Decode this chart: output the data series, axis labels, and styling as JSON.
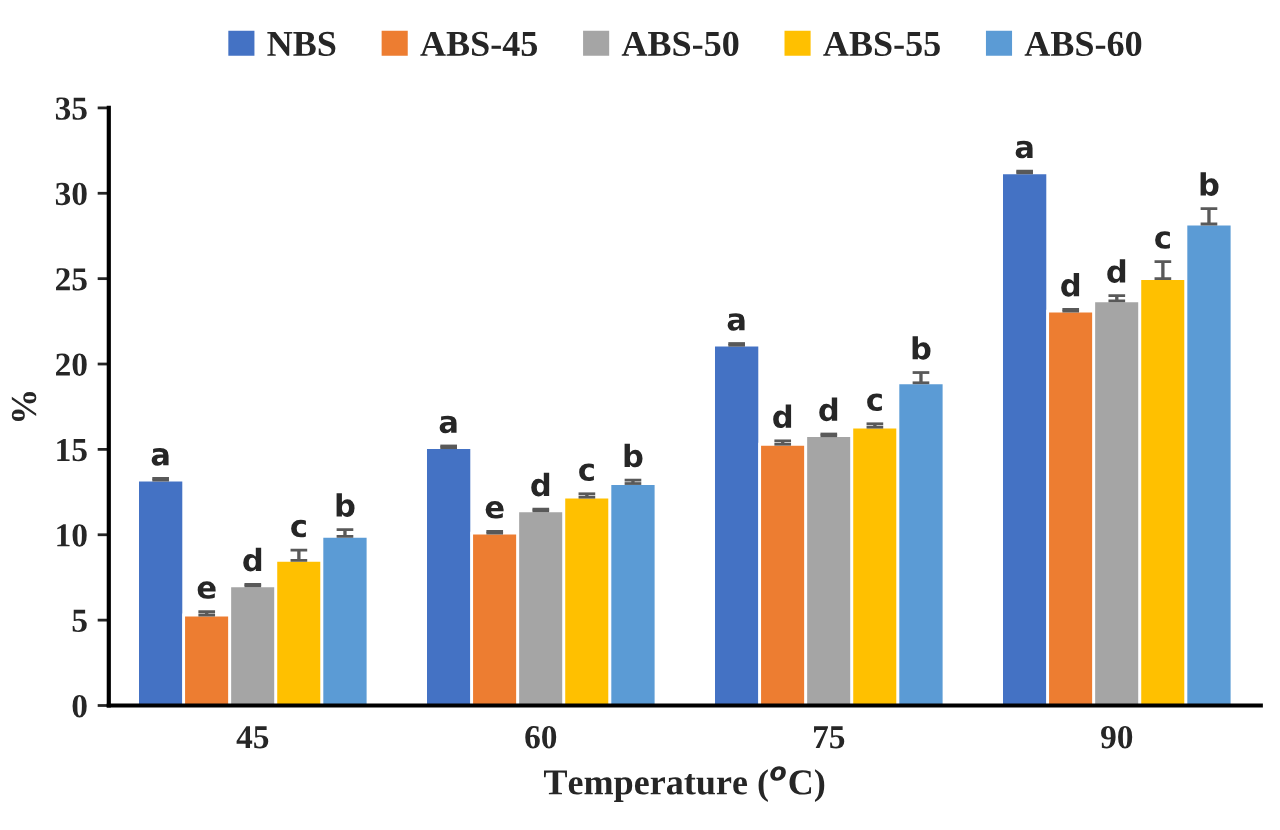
{
  "chart_data": {
    "type": "bar",
    "xlabel": "Temperature ($^{o}$C)",
    "ylabel": "%",
    "categories": [
      "45",
      "60",
      "75",
      "90"
    ],
    "series": [
      {
        "name": "NBS",
        "color": "#4472c4",
        "values": [
          13.2,
          15.1,
          21.1,
          31.2
        ],
        "errors": [
          [
            13.2,
            13.3
          ],
          [
            15.1,
            15.2
          ],
          [
            21.1,
            21.2
          ],
          [
            31.2,
            31.3
          ]
        ],
        "value_labels": [
          "a",
          "a",
          "a",
          "a"
        ]
      },
      {
        "name": "ABS-45",
        "color": "#ed7d31",
        "values": [
          5.3,
          10.1,
          15.3,
          23.1
        ],
        "errors": [
          [
            5.3,
            5.5
          ],
          [
            10.1,
            10.2
          ],
          [
            15.3,
            15.5
          ],
          [
            23.1,
            23.2
          ]
        ],
        "value_labels": [
          "e",
          "e",
          "d",
          "d"
        ]
      },
      {
        "name": "ABS-50",
        "color": "#a5a5a5",
        "values": [
          7.0,
          11.4,
          15.8,
          23.7
        ],
        "errors": [
          [
            7.0,
            7.1
          ],
          [
            11.4,
            11.5
          ],
          [
            15.8,
            15.9
          ],
          [
            23.7,
            24.0
          ]
        ],
        "value_labels": [
          "d",
          "d",
          "d",
          "d"
        ]
      },
      {
        "name": "ABS-55",
        "color": "#ffc000",
        "values": [
          8.5,
          12.2,
          16.3,
          25.0
        ],
        "errors": [
          [
            8.5,
            9.1
          ],
          [
            12.2,
            12.4
          ],
          [
            16.3,
            16.5
          ],
          [
            25.0,
            26.0
          ]
        ],
        "value_labels": [
          "c",
          "c",
          "c",
          "c"
        ]
      },
      {
        "name": "ABS-60",
        "color": "#5b9bd5",
        "values": [
          9.9,
          13.0,
          18.9,
          28.2
        ],
        "errors": [
          [
            9.9,
            10.3
          ],
          [
            13.0,
            13.2
          ],
          [
            18.9,
            19.5
          ],
          [
            28.2,
            29.1
          ]
        ],
        "value_labels": [
          "b",
          "b",
          "b",
          "b"
        ]
      }
    ],
    "ylim": [
      0,
      35
    ],
    "yticks": [
      0,
      5,
      10,
      15,
      20,
      25,
      30,
      35
    ],
    "grid": false,
    "legend": "top"
  }
}
